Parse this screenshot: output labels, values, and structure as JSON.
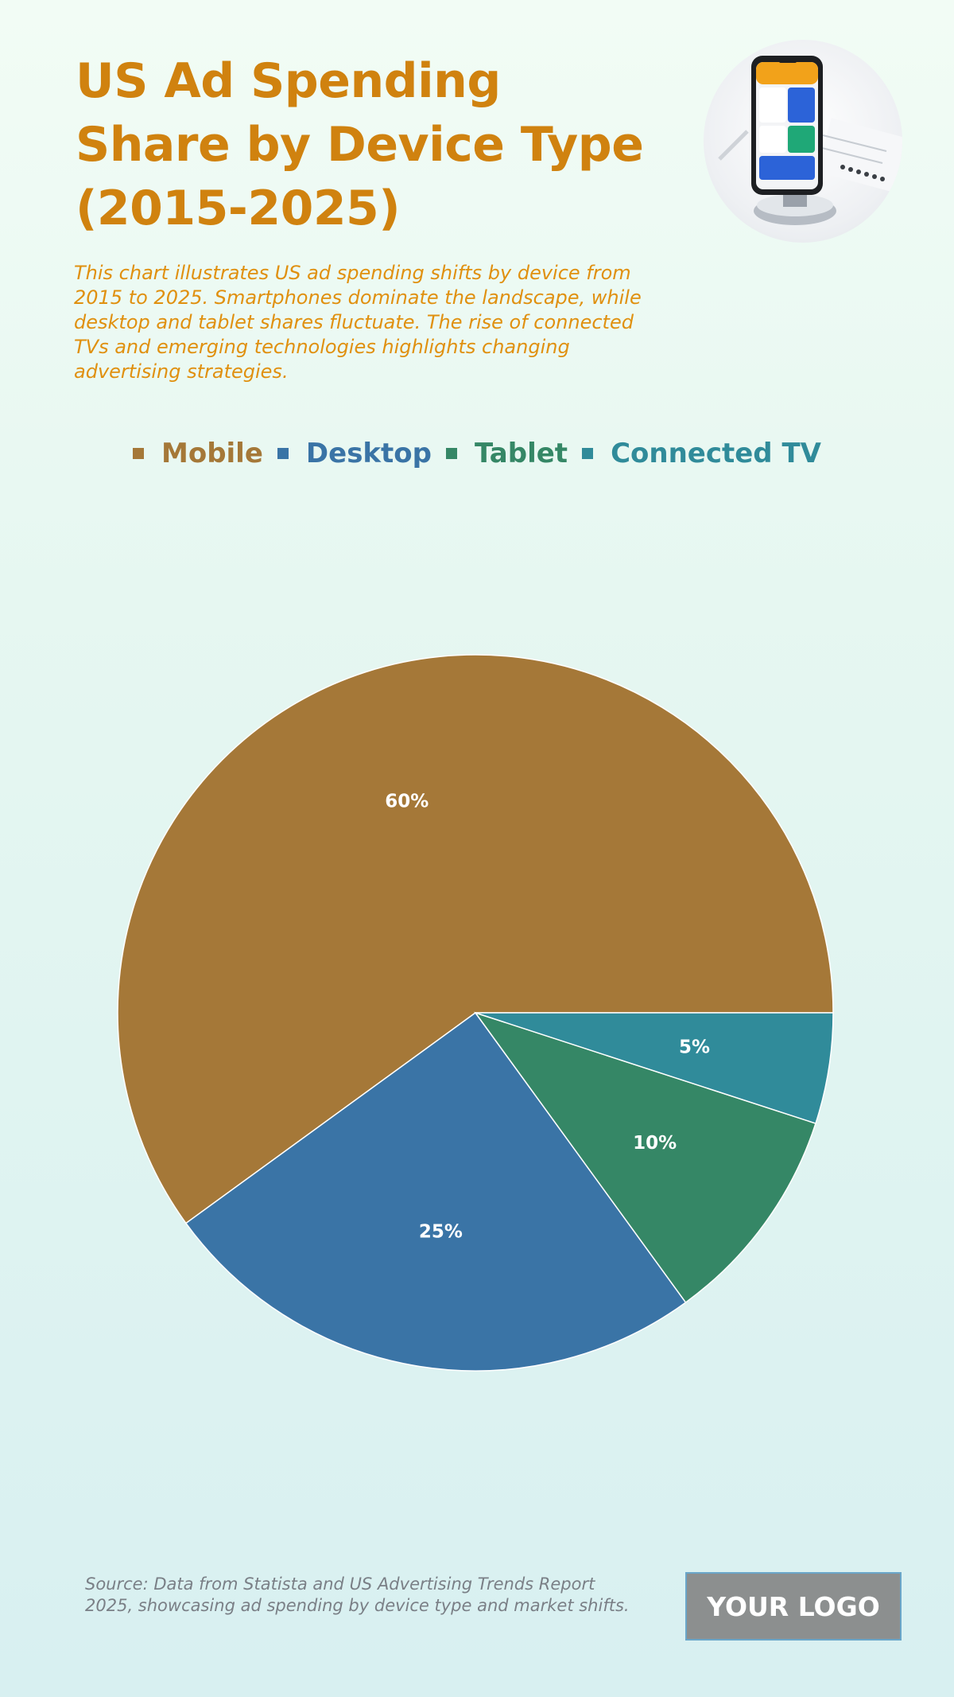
{
  "header": {
    "title": "US Ad Spending\nShare by Device Type\n(2015-2025)",
    "subtitle": "This chart illustrates US ad spending shifts by device from 2015 to 2025. Smartphones dominate the landscape, while desktop and tablet shares fluctuate. The rise of connected TVs and emerging technologies highlights changing advertising strategies."
  },
  "chart_data": {
    "type": "pie",
    "categories": [
      "Mobile",
      "Desktop",
      "Tablet",
      "Connected TV"
    ],
    "values": [
      60,
      25,
      10,
      5
    ],
    "labels": [
      "60%",
      "25%",
      "10%",
      "5%"
    ],
    "colors": [
      "#a57838",
      "#3a74a6",
      "#358766",
      "#308b9a"
    ],
    "legend_placement": "top"
  },
  "footer": {
    "source": "Source: Data from Statista and US Advertising Trends Report 2025, showcasing ad spending by device type and market shifts.",
    "logo_text": "YOUR LOGO"
  }
}
